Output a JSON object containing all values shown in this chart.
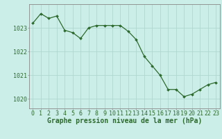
{
  "hours": [
    0,
    1,
    2,
    3,
    4,
    5,
    6,
    7,
    8,
    9,
    10,
    11,
    12,
    13,
    14,
    15,
    16,
    17,
    18,
    19,
    20,
    21,
    22,
    23
  ],
  "pressure": [
    1023.2,
    1023.6,
    1023.4,
    1023.5,
    1022.9,
    1022.8,
    1022.55,
    1023.0,
    1023.1,
    1023.1,
    1023.1,
    1023.1,
    1022.85,
    1022.5,
    1021.8,
    1021.4,
    1021.0,
    1020.4,
    1020.4,
    1020.1,
    1020.2,
    1020.4,
    1020.6,
    1020.7
  ],
  "line_color": "#2d6a2d",
  "marker": "D",
  "marker_size": 2.0,
  "bg_color": "#cceee8",
  "grid_color": "#b0d8d0",
  "ylabel_ticks": [
    1020,
    1021,
    1022,
    1023
  ],
  "xlabel": "Graphe pression niveau de la mer (hPa)",
  "xlim": [
    -0.5,
    23.5
  ],
  "ylim": [
    1019.6,
    1024.0
  ],
  "border_color": "#888888",
  "tick_fontsize": 6.0,
  "xlabel_fontsize": 7.0
}
